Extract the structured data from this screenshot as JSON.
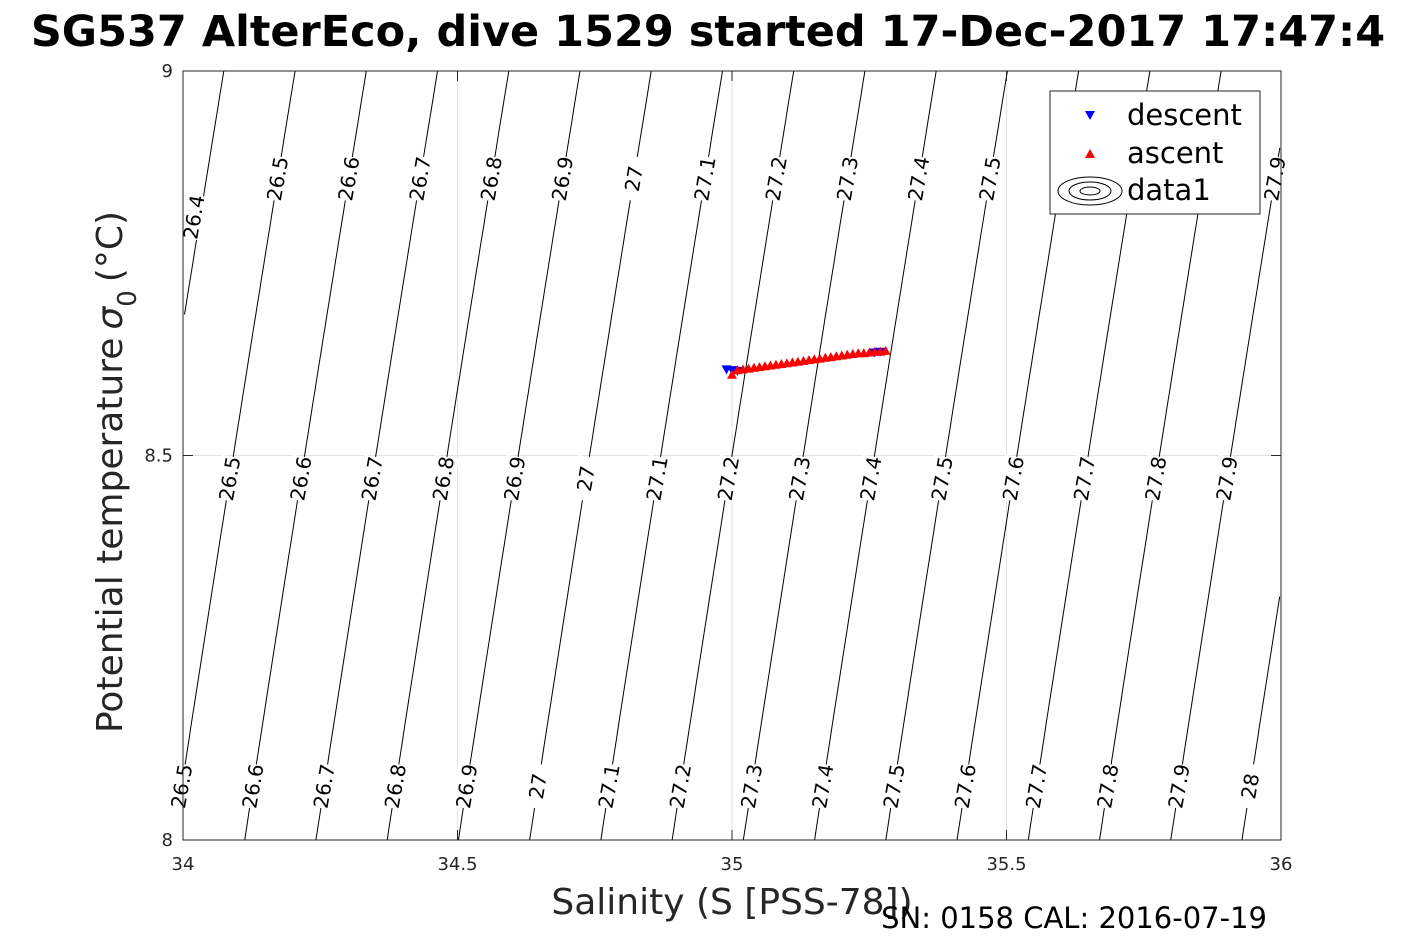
{
  "chart_data": {
    "type": "scatter",
    "title": "SG537 AlterEco, dive 1529 started 17-Dec-2017 17:47:4",
    "xlabel": "Salinity (S [PSS-78])",
    "ylabel": "Potential temperature",
    "ylabel_symbol": "σ",
    "ylabel_subscript": "0",
    "ylabel_unit": "(°C)",
    "xlim": [
      34,
      36
    ],
    "ylim": [
      8,
      9
    ],
    "xticks": [
      34,
      34.5,
      35,
      35.5,
      36
    ],
    "xtick_labels": [
      "34",
      "34.5",
      "35",
      "35.5",
      "36"
    ],
    "yticks": [
      8,
      8.5,
      9
    ],
    "ytick_labels": [
      "8",
      "8.5",
      "9"
    ],
    "grid": true,
    "legend_position": "top-right",
    "legend": [
      "descent",
      "ascent",
      "data1"
    ],
    "series": [
      {
        "name": "descent",
        "marker": "triangle-down",
        "color": "#0000ff",
        "x": [
          34.99,
          35.0,
          35.01,
          35.26,
          35.27
        ],
        "y": [
          8.612,
          8.611,
          8.61,
          8.634,
          8.635
        ]
      },
      {
        "name": "ascent",
        "marker": "triangle-up",
        "color": "#ff0000",
        "x": [
          35.0,
          35.01,
          35.02,
          35.03,
          35.04,
          35.05,
          35.06,
          35.07,
          35.08,
          35.09,
          35.1,
          35.11,
          35.12,
          35.13,
          35.14,
          35.15,
          35.16,
          35.17,
          35.18,
          35.19,
          35.2,
          35.21,
          35.22,
          35.23,
          35.24,
          35.25,
          35.26,
          35.27,
          35.28
        ],
        "y": [
          8.605,
          8.611,
          8.612,
          8.613,
          8.614,
          8.615,
          8.616,
          8.617,
          8.618,
          8.619,
          8.62,
          8.621,
          8.622,
          8.623,
          8.624,
          8.625,
          8.626,
          8.627,
          8.628,
          8.629,
          8.63,
          8.631,
          8.632,
          8.633,
          8.633,
          8.634,
          8.635,
          8.635,
          8.636
        ]
      },
      {
        "name": "data1",
        "type": "contour",
        "color": "#000000",
        "levels": [
          26.4,
          26.5,
          26.6,
          26.7,
          26.8,
          26.9,
          27.0,
          27.1,
          27.2,
          27.3,
          27.4,
          27.5,
          27.6,
          27.7,
          27.8,
          27.9,
          28.0
        ]
      }
    ],
    "contour_labels": {
      "top": [
        "26.5",
        "26.6",
        "26.7",
        "26.8",
        "26.9",
        "27",
        "27.1",
        "27.2",
        "27.3",
        "27.4",
        "27.5",
        "27.8",
        "27.9"
      ],
      "left": [
        "26.4"
      ],
      "middle": [
        "26.5",
        "26.6",
        "26.7",
        "26.8",
        "26.9",
        "27",
        "27.1",
        "27.2",
        "27.3",
        "27.4",
        "27.5",
        "27.6",
        "27.7",
        "27.8",
        "27.9"
      ],
      "bottom": [
        "26.5",
        "26.6",
        "26.7",
        "26.8",
        "26.9",
        "27",
        "27.1",
        "27.2",
        "27.3",
        "27.4",
        "27.5",
        "27.6",
        "27.7",
        "27.8",
        "27.9",
        "28"
      ]
    }
  },
  "footer": {
    "serial": "SN: 0158  CAL: 2016-07-19"
  }
}
